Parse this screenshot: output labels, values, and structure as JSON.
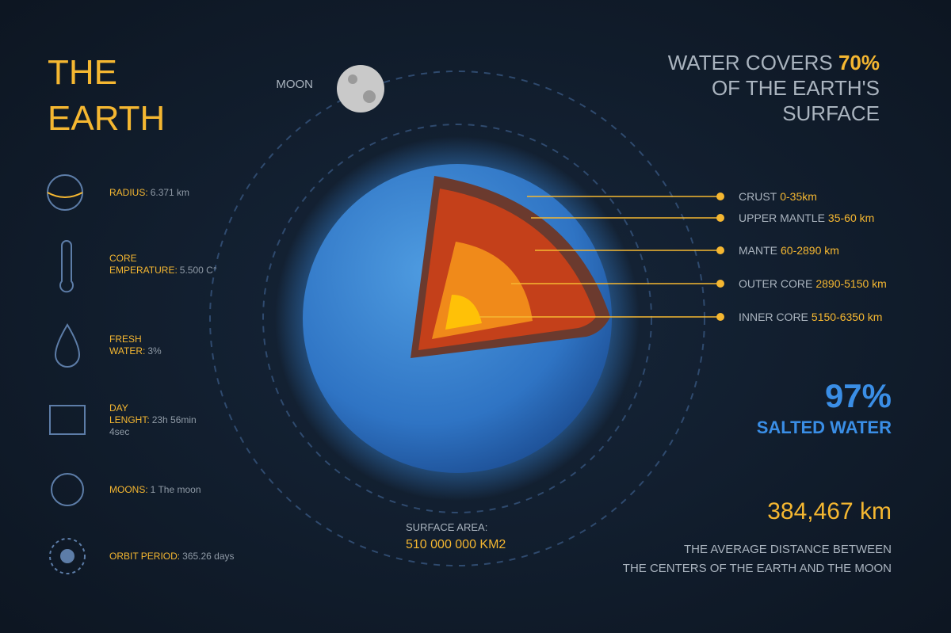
{
  "title": [
    "THE",
    "EARTH"
  ],
  "moon_label": "MOON",
  "facts": [
    {
      "label": [
        "RADIUS:"
      ],
      "value": [
        "6.371 km"
      ]
    },
    {
      "label": [
        "CORE",
        "EMPERATURE:"
      ],
      "value": [
        "5.500 C°"
      ]
    },
    {
      "label": [
        "FRESH",
        "WATER:"
      ],
      "value": [
        "3%"
      ]
    },
    {
      "label": [
        "DAY",
        "LENGHT:"
      ],
      "value": [
        "23h 56min",
        "4sec"
      ]
    },
    {
      "label": [
        "MOONS:"
      ],
      "value": [
        "1 The moon"
      ]
    },
    {
      "label": [
        "ORBIT PERIOD:"
      ],
      "value": [
        "365.26 days"
      ]
    }
  ],
  "water": {
    "lead": "WATER COVERS",
    "highlight": "70%",
    "rest": [
      "OF THE EARTH'S",
      "SURFACE"
    ]
  },
  "layers": [
    {
      "name": "CRUST",
      "range": "0-35km"
    },
    {
      "name": "UPPER MANTLE",
      "range": "35-60 km"
    },
    {
      "name": "MANTE",
      "range": "60-2890 km"
    },
    {
      "name": "OUTER CORE",
      "range": "2890-5150 km"
    },
    {
      "name": "INNER CORE",
      "range": "5150-6350 km"
    }
  ],
  "salted": {
    "value": "97%",
    "label": "SALTED WATER"
  },
  "surface": {
    "label": "SURFACE AREA:",
    "value": "510 000 000 KM2"
  },
  "distance": {
    "value": "384,467 km",
    "caption": [
      "THE AVERAGE DISTANCE BETWEEN",
      "THE CENTERS OF THE EARTH AND THE MOON"
    ]
  }
}
